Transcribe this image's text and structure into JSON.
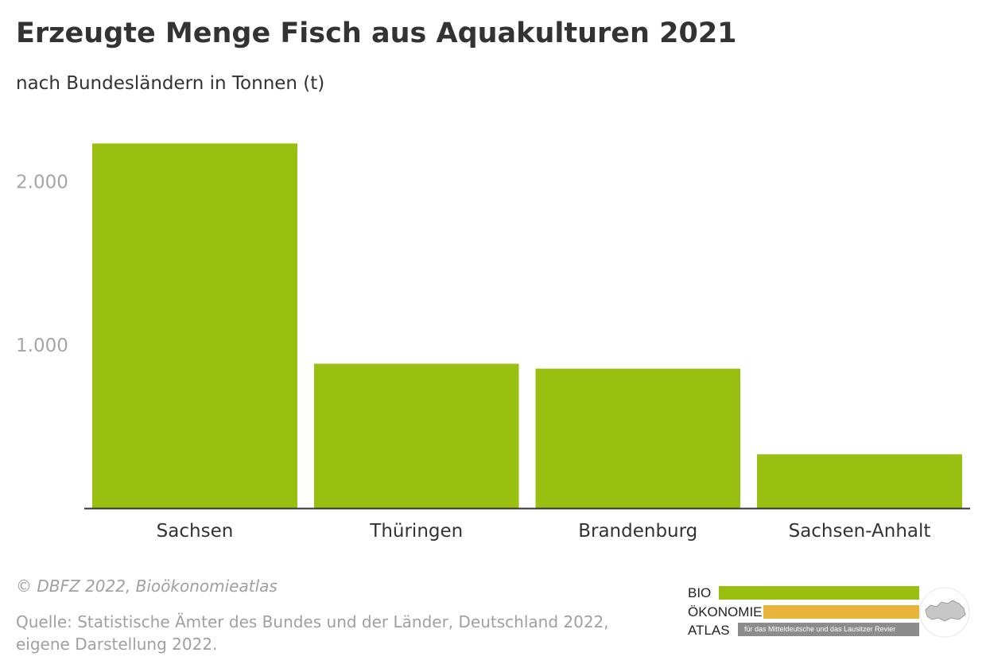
{
  "header": {
    "title": "Erzeugte Menge Fisch aus Aquakulturen 2021",
    "subtitle": "nach Bundesländern in Tonnen (t)"
  },
  "chart_data": {
    "type": "bar",
    "categories": [
      "Sachsen",
      "Thüringen",
      "Brandenburg",
      "Sachsen-Anhalt"
    ],
    "values": [
      2235,
      885,
      855,
      330
    ],
    "yticks": [
      1000,
      2000
    ],
    "ytick_labels": [
      "1.000",
      "2.000"
    ],
    "ylim": [
      0,
      2500
    ],
    "grid": false,
    "bar_color": "#99c010",
    "axis_color": "#333333",
    "tick_label_color": "#a6a6a6"
  },
  "footer": {
    "credit": "© DBFZ 2022, Bioökonomieatlas",
    "source_line1": "Quelle: Statistische Ämter des Bundes und der Länder, Deutschland 2022,",
    "source_line2": "eigene Darstellung 2022."
  },
  "logo": {
    "word1": "BIO",
    "word2": "ÖKONOMIE",
    "word3": "ATLAS",
    "tagline": "für das Mitteldeutsche und das Lausitzer Revier",
    "green": "#99c010",
    "orange": "#e8b53a",
    "grey": "#8c8c8c"
  }
}
